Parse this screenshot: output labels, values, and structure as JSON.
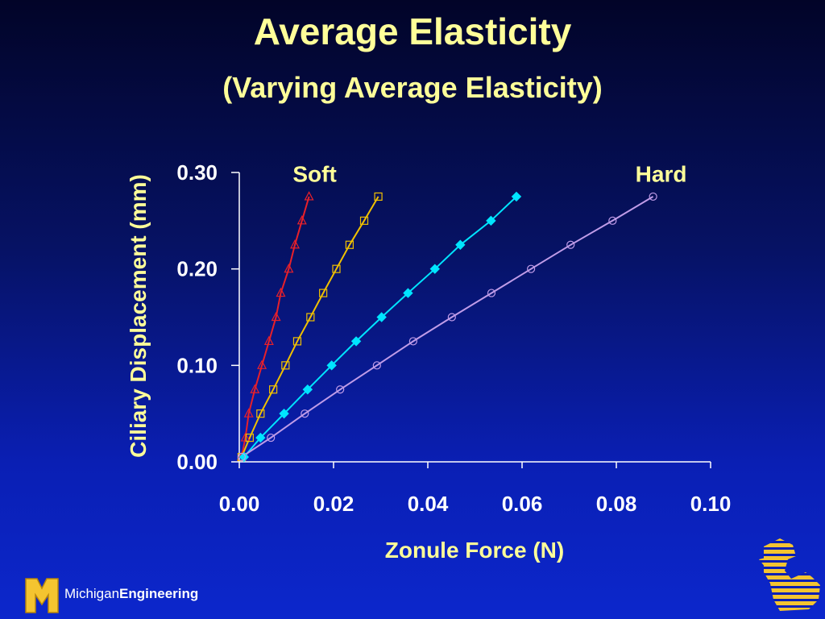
{
  "slide": {
    "title": "Average Elasticity",
    "subtitle": "(Varying Average Elasticity)",
    "footer_brand_regular": "Michigan",
    "footer_brand_bold": "Engineering",
    "logo_letter": "M"
  },
  "colors": {
    "title": "#ffff99",
    "background_top": "#020428",
    "background_bottom": "#0c27cc",
    "logo_gold": "#f4c430"
  },
  "chart_data": {
    "type": "scatter",
    "xlabel": "Zonule Force (N)",
    "ylabel": "Ciliary Displacement (mm)",
    "xlim": [
      0,
      0.1
    ],
    "ylim": [
      0,
      0.3
    ],
    "x_ticks": [
      "0.00",
      "0.02",
      "0.04",
      "0.06",
      "0.08",
      "0.10"
    ],
    "y_ticks": [
      "0.00",
      "0.10",
      "0.20",
      "0.30"
    ],
    "grid": false,
    "annotations": [
      {
        "text": "Soft",
        "x": 0.016,
        "y": 0.298
      },
      {
        "text": "Hard",
        "x": 0.0895,
        "y": 0.298
      }
    ],
    "series": [
      {
        "marker": "triangle",
        "color": "#e8202a",
        "points": [
          [
            0.0005,
            0.005
          ],
          [
            0.0013,
            0.025
          ],
          [
            0.002,
            0.05
          ],
          [
            0.0033,
            0.075
          ],
          [
            0.0048,
            0.1
          ],
          [
            0.0063,
            0.125
          ],
          [
            0.0078,
            0.15
          ],
          [
            0.0088,
            0.175
          ],
          [
            0.0105,
            0.2
          ],
          [
            0.0118,
            0.225
          ],
          [
            0.0133,
            0.25
          ],
          [
            0.0148,
            0.275
          ]
        ]
      },
      {
        "marker": "square",
        "color": "#f0c000",
        "points": [
          [
            0.0005,
            0.005
          ],
          [
            0.0022,
            0.025
          ],
          [
            0.0045,
            0.05
          ],
          [
            0.0072,
            0.075
          ],
          [
            0.0098,
            0.1
          ],
          [
            0.0123,
            0.125
          ],
          [
            0.0151,
            0.15
          ],
          [
            0.0178,
            0.175
          ],
          [
            0.0206,
            0.2
          ],
          [
            0.0234,
            0.225
          ],
          [
            0.0265,
            0.25
          ],
          [
            0.0295,
            0.275
          ]
        ]
      },
      {
        "marker": "diamond",
        "color": "#00e5ff",
        "points": [
          [
            0.001,
            0.005
          ],
          [
            0.0045,
            0.025
          ],
          [
            0.0095,
            0.05
          ],
          [
            0.0145,
            0.075
          ],
          [
            0.0196,
            0.1
          ],
          [
            0.0248,
            0.125
          ],
          [
            0.0302,
            0.15
          ],
          [
            0.0358,
            0.175
          ],
          [
            0.0415,
            0.2
          ],
          [
            0.0469,
            0.225
          ],
          [
            0.0534,
            0.25
          ],
          [
            0.0588,
            0.275
          ]
        ]
      },
      {
        "marker": "circle",
        "color": "#c09ce8",
        "points": [
          [
            0.0005,
            0.005
          ],
          [
            0.0067,
            0.025
          ],
          [
            0.0139,
            0.05
          ],
          [
            0.0214,
            0.075
          ],
          [
            0.0292,
            0.1
          ],
          [
            0.0369,
            0.125
          ],
          [
            0.0451,
            0.15
          ],
          [
            0.0535,
            0.175
          ],
          [
            0.0619,
            0.2
          ],
          [
            0.0703,
            0.225
          ],
          [
            0.0792,
            0.25
          ],
          [
            0.0878,
            0.275
          ]
        ]
      }
    ]
  }
}
